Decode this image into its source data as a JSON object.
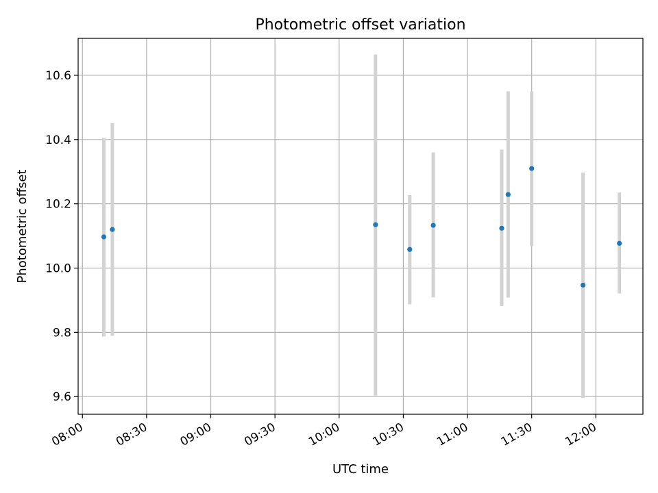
{
  "chart_data": {
    "type": "scatter",
    "title": "Photometric offset variation",
    "xlabel": "UTC time",
    "ylabel": "Photometric offset",
    "x_axis_kind": "time",
    "xlim": [
      "07:58",
      "12:22"
    ],
    "ylim": [
      9.545,
      10.715
    ],
    "grid": true,
    "x_ticks": [
      "08:00",
      "08:30",
      "09:00",
      "09:30",
      "10:00",
      "10:30",
      "11:00",
      "11:30",
      "12:00"
    ],
    "y_ticks": [
      "9.6",
      "9.8",
      "10.0",
      "10.2",
      "10.4",
      "10.6"
    ],
    "colors": {
      "point": "#1f77b4",
      "errorbar": "#d3d3d3",
      "grid": "#b0b0b0",
      "axes": "#000000"
    },
    "series": [
      {
        "points": [
          {
            "x": "08:10",
            "y": 10.097,
            "err_low": 9.787,
            "err_high": 10.405
          },
          {
            "x": "08:14",
            "y": 10.12,
            "err_low": 9.789,
            "err_high": 10.451
          },
          {
            "x": "10:17",
            "y": 10.135,
            "err_low": 9.603,
            "err_high": 10.665
          },
          {
            "x": "10:33",
            "y": 10.058,
            "err_low": 9.887,
            "err_high": 10.227
          },
          {
            "x": "10:44",
            "y": 10.133,
            "err_low": 9.909,
            "err_high": 10.36
          },
          {
            "x": "11:16",
            "y": 10.124,
            "err_low": 9.882,
            "err_high": 10.369
          },
          {
            "x": "11:19",
            "y": 10.229,
            "err_low": 9.908,
            "err_high": 10.55
          },
          {
            "x": "11:30",
            "y": 10.31,
            "err_low": 10.068,
            "err_high": 10.55
          },
          {
            "x": "11:54",
            "y": 9.947,
            "err_low": 9.596,
            "err_high": 10.297
          },
          {
            "x": "12:11",
            "y": 10.077,
            "err_low": 9.921,
            "err_high": 10.235
          }
        ]
      }
    ]
  }
}
